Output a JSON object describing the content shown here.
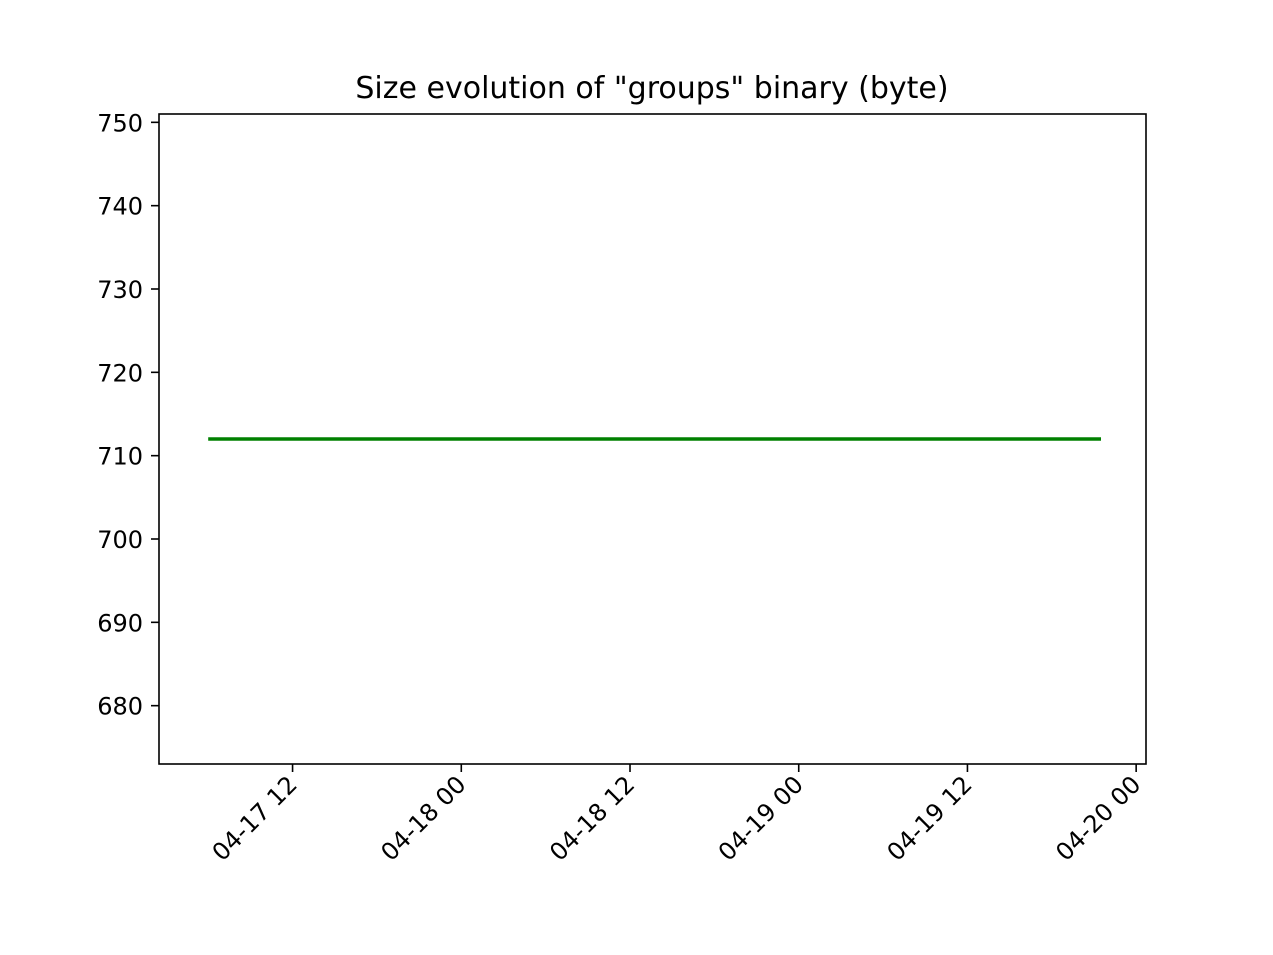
{
  "chart_data": {
    "type": "line",
    "title": "Size evolution of \"groups\" binary (byte)",
    "xlabel": "",
    "ylabel": "",
    "grid": false,
    "x_range": [
      "2025-04-17 02:30",
      "2025-04-20 00:42"
    ],
    "ylim": [
      673,
      751
    ],
    "y_ticks": [
      680,
      690,
      700,
      710,
      720,
      730,
      740,
      750
    ],
    "x_ticks": [
      {
        "value": "2025-04-17 12:00",
        "label": "04-17 12"
      },
      {
        "value": "2025-04-18 00:00",
        "label": "04-18 00"
      },
      {
        "value": "2025-04-18 12:00",
        "label": "04-18 12"
      },
      {
        "value": "2025-04-19 00:00",
        "label": "04-19 00"
      },
      {
        "value": "2025-04-19 12:00",
        "label": "04-19 12"
      },
      {
        "value": "2025-04-20 00:00",
        "label": "04-20 00"
      }
    ],
    "series": [
      {
        "color": "#008000",
        "points": [
          {
            "x": "2025-04-17 06:00",
            "y": 712
          },
          {
            "x": "2025-04-19 21:30",
            "y": 712
          }
        ]
      }
    ]
  }
}
